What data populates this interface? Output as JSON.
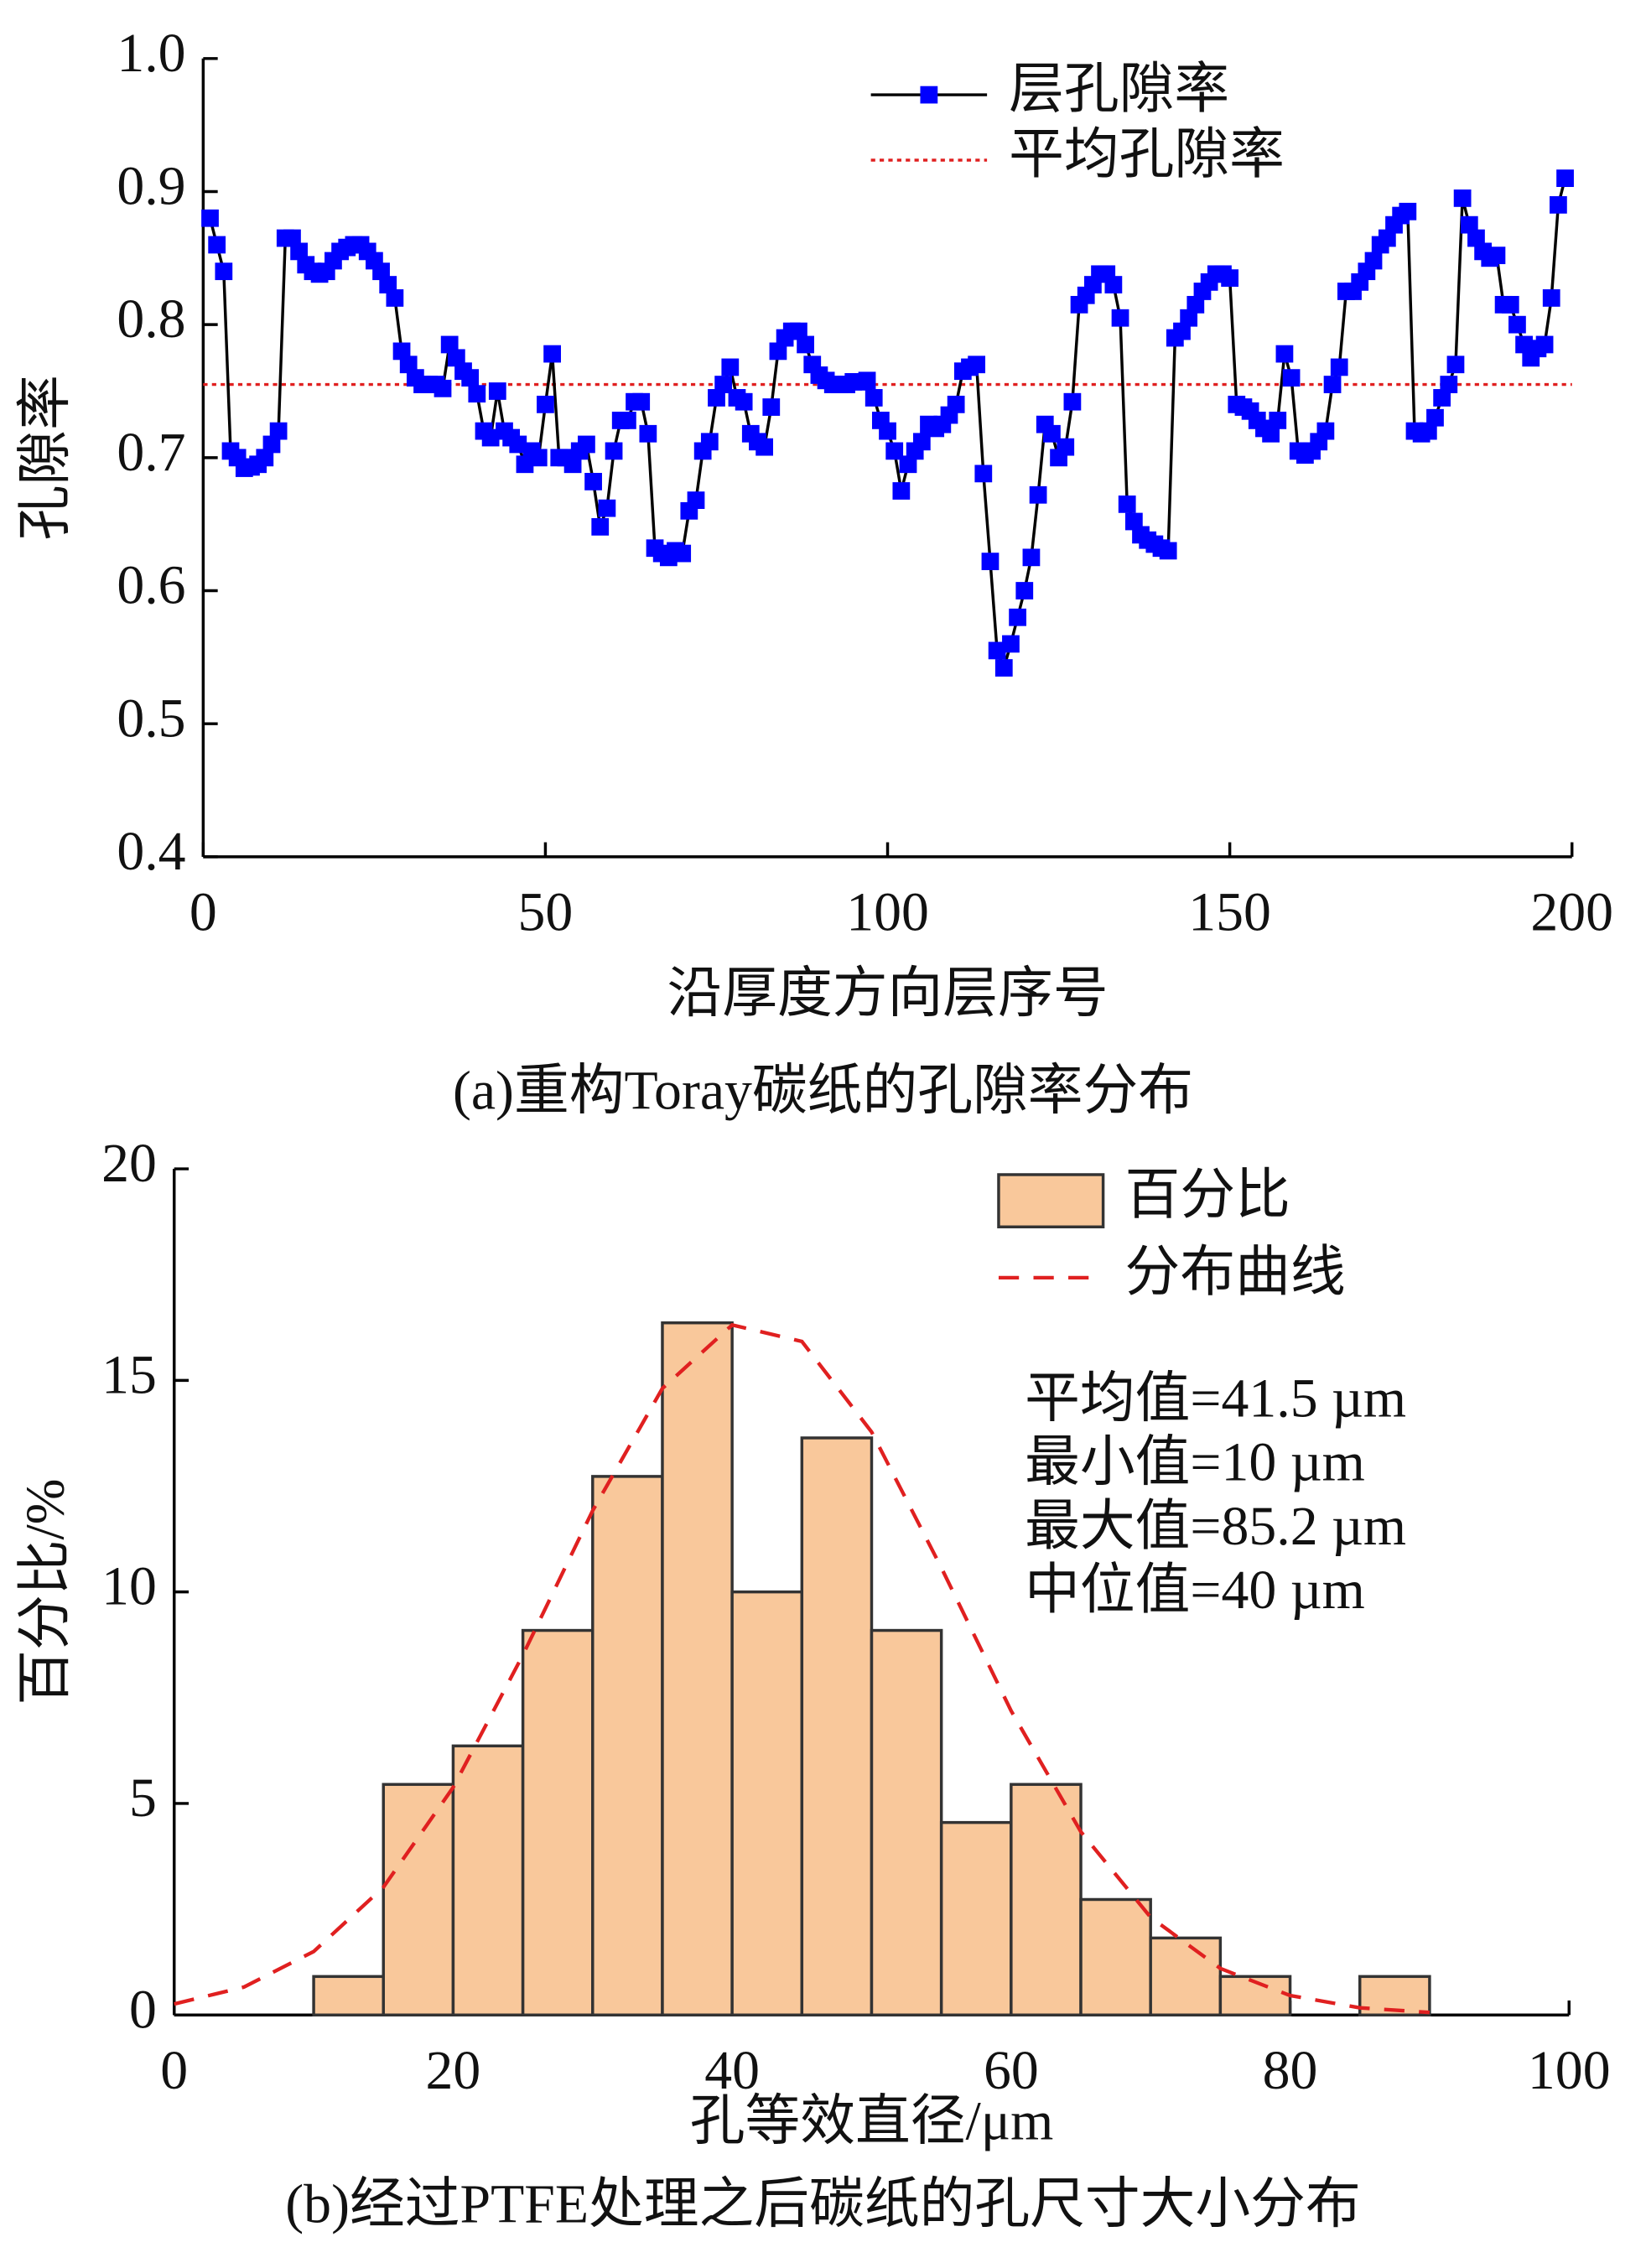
{
  "chart_data": [
    {
      "type": "line",
      "title": "(a)重构Toray碳纸的孔隙率分布",
      "xlabel": "沿厚度方向层序号",
      "ylabel": "孔隙率",
      "xlim": [
        0,
        200
      ],
      "xticks": [
        0,
        50,
        100,
        150,
        200
      ],
      "ylim": [
        0.4,
        1.0
      ],
      "yticks": [
        0.4,
        0.5,
        0.6,
        0.7,
        0.8,
        0.9,
        {
          "value": 1.0,
          "label": "1.0"
        }
      ],
      "x": [
        1,
        2,
        3,
        4,
        5,
        6,
        7,
        8,
        9,
        10,
        11,
        12,
        13,
        14,
        15,
        16,
        17,
        18,
        19,
        20,
        21,
        22,
        23,
        24,
        25,
        26,
        27,
        28,
        29,
        30,
        31,
        32,
        33,
        34,
        35,
        36,
        37,
        38,
        39,
        40,
        41,
        42,
        43,
        44,
        45,
        46,
        47,
        48,
        49,
        50,
        51,
        52,
        53,
        54,
        55,
        56,
        57,
        58,
        59,
        60,
        61,
        62,
        63,
        64,
        65,
        66,
        67,
        68,
        69,
        70,
        71,
        72,
        73,
        74,
        75,
        76,
        77,
        78,
        79,
        80,
        81,
        82,
        83,
        84,
        85,
        86,
        87,
        88,
        89,
        90,
        91,
        92,
        93,
        94,
        95,
        96,
        97,
        98,
        99,
        100,
        101,
        102,
        103,
        104,
        105,
        106,
        107,
        108,
        109,
        110,
        111,
        112,
        113,
        114,
        115,
        116,
        117,
        118,
        119,
        120,
        121,
        122,
        123,
        124,
        125,
        126,
        127,
        128,
        129,
        130,
        131,
        132,
        133,
        134,
        135,
        136,
        137,
        138,
        139,
        140,
        141,
        142,
        143,
        144,
        145,
        146,
        147,
        148,
        149,
        150,
        151,
        152,
        153,
        154,
        155,
        156,
        157,
        158,
        159,
        160,
        161,
        162,
        163,
        164,
        165,
        166,
        167,
        168,
        169,
        170,
        171,
        172,
        173,
        174,
        175,
        176,
        177,
        178,
        179,
        180,
        181,
        182,
        183,
        184,
        185,
        186,
        187,
        188,
        189,
        190,
        191,
        192,
        193,
        194,
        195,
        196,
        197,
        198,
        199
      ],
      "series": [
        {
          "name": "层孔隙率",
          "color": "#0000ff",
          "line_color": "#000000",
          "values": [
            0.88,
            0.86,
            0.84,
            0.705,
            0.7,
            0.692,
            0.693,
            0.695,
            0.7,
            0.71,
            0.72,
            0.865,
            0.865,
            0.855,
            0.845,
            0.84,
            0.838,
            0.84,
            0.848,
            0.855,
            0.858,
            0.86,
            0.86,
            0.855,
            0.848,
            0.84,
            0.83,
            0.82,
            0.78,
            0.77,
            0.76,
            0.755,
            0.755,
            0.755,
            0.752,
            0.785,
            0.775,
            0.765,
            0.76,
            0.748,
            0.72,
            0.715,
            0.75,
            0.72,
            0.715,
            0.71,
            0.695,
            0.705,
            0.7,
            0.74,
            0.778,
            0.7,
            0.7,
            0.695,
            0.705,
            0.71,
            0.682,
            0.648,
            0.662,
            0.705,
            0.728,
            0.728,
            0.742,
            0.742,
            0.718,
            0.632,
            0.628,
            0.625,
            0.63,
            0.628,
            0.66,
            0.668,
            0.705,
            0.712,
            0.745,
            0.755,
            0.768,
            0.745,
            0.742,
            0.718,
            0.712,
            0.708,
            0.738,
            0.78,
            0.79,
            0.795,
            0.795,
            0.785,
            0.77,
            0.762,
            0.758,
            0.755,
            0.755,
            0.755,
            0.757,
            0.757,
            0.758,
            0.745,
            0.728,
            0.72,
            0.705,
            0.675,
            0.695,
            0.705,
            0.712,
            0.725,
            0.722,
            0.725,
            0.732,
            0.74,
            0.765,
            0.768,
            0.77,
            0.688,
            0.622,
            0.555,
            0.542,
            0.56,
            0.58,
            0.6,
            0.625,
            0.672,
            0.725,
            0.718,
            0.7,
            0.708,
            0.742,
            0.815,
            0.822,
            0.83,
            0.838,
            0.838,
            0.83,
            0.805,
            0.665,
            0.652,
            0.642,
            0.638,
            0.635,
            0.632,
            0.63,
            0.79,
            0.795,
            0.805,
            0.815,
            0.825,
            0.832,
            0.838,
            0.838,
            0.835,
            0.74,
            0.738,
            0.735,
            0.728,
            0.722,
            0.718,
            0.728,
            0.778,
            0.76,
            0.705,
            0.702,
            0.705,
            0.712,
            0.72,
            0.755,
            0.768,
            0.825,
            0.825,
            0.832,
            0.84,
            0.848,
            0.86,
            0.865,
            0.875,
            0.882,
            0.885,
            0.72,
            0.718,
            0.72,
            0.73,
            0.745,
            0.755,
            0.77,
            0.895,
            0.875,
            0.865,
            0.855,
            0.85,
            0.852,
            0.815,
            0.815,
            0.8,
            0.785,
            0.775,
            0.782,
            0.785,
            0.82,
            0.89,
            0.91
          ]
        }
      ],
      "hlines": [
        {
          "name": "平均孔隙率",
          "value": 0.755,
          "color": "#e02020"
        }
      ]
    },
    {
      "type": "histogram",
      "title": "(b)经过PTFE处理之后碳纸的孔尺寸大小分布",
      "xlabel": "孔等效直径/μm",
      "ylabel": "百分比/%",
      "xlim": [
        0,
        100
      ],
      "xticks": [
        0,
        20,
        40,
        60,
        80,
        100
      ],
      "ylim": [
        0,
        20
      ],
      "yticks": [
        0,
        5,
        10,
        15,
        20
      ],
      "name": "百分比",
      "color": "#f9c89b",
      "bins": [
        10,
        15,
        20,
        25,
        30,
        35,
        40,
        45,
        50,
        55,
        60,
        65,
        70,
        75,
        80,
        85,
        90
      ],
      "values": [
        0.91,
        5.45,
        6.36,
        9.09,
        12.73,
        16.36,
        10,
        13.64,
        9.09,
        4.55,
        5.45,
        2.73,
        1.82,
        0.91,
        0,
        0.91
      ],
      "curve": {
        "name": "分布曲线",
        "color": "#e02020",
        "x": [
          0,
          5,
          10,
          15,
          20,
          25,
          30,
          35,
          40,
          45,
          50,
          55,
          60,
          65,
          70,
          75,
          80,
          85,
          90
        ],
        "values": [
          0.26,
          0.66,
          1.5,
          3.02,
          5.38,
          8.51,
          11.92,
          14.81,
          16.31,
          15.92,
          13.78,
          10.57,
          7.19,
          4.33,
          2.31,
          1.1,
          0.46,
          0.17,
          0.06
        ]
      },
      "annotations": [
        "平均值=41.5 µm",
        "最小值=10 µm",
        "最大值=85.2 µm",
        "中位值=40 µm"
      ]
    }
  ]
}
